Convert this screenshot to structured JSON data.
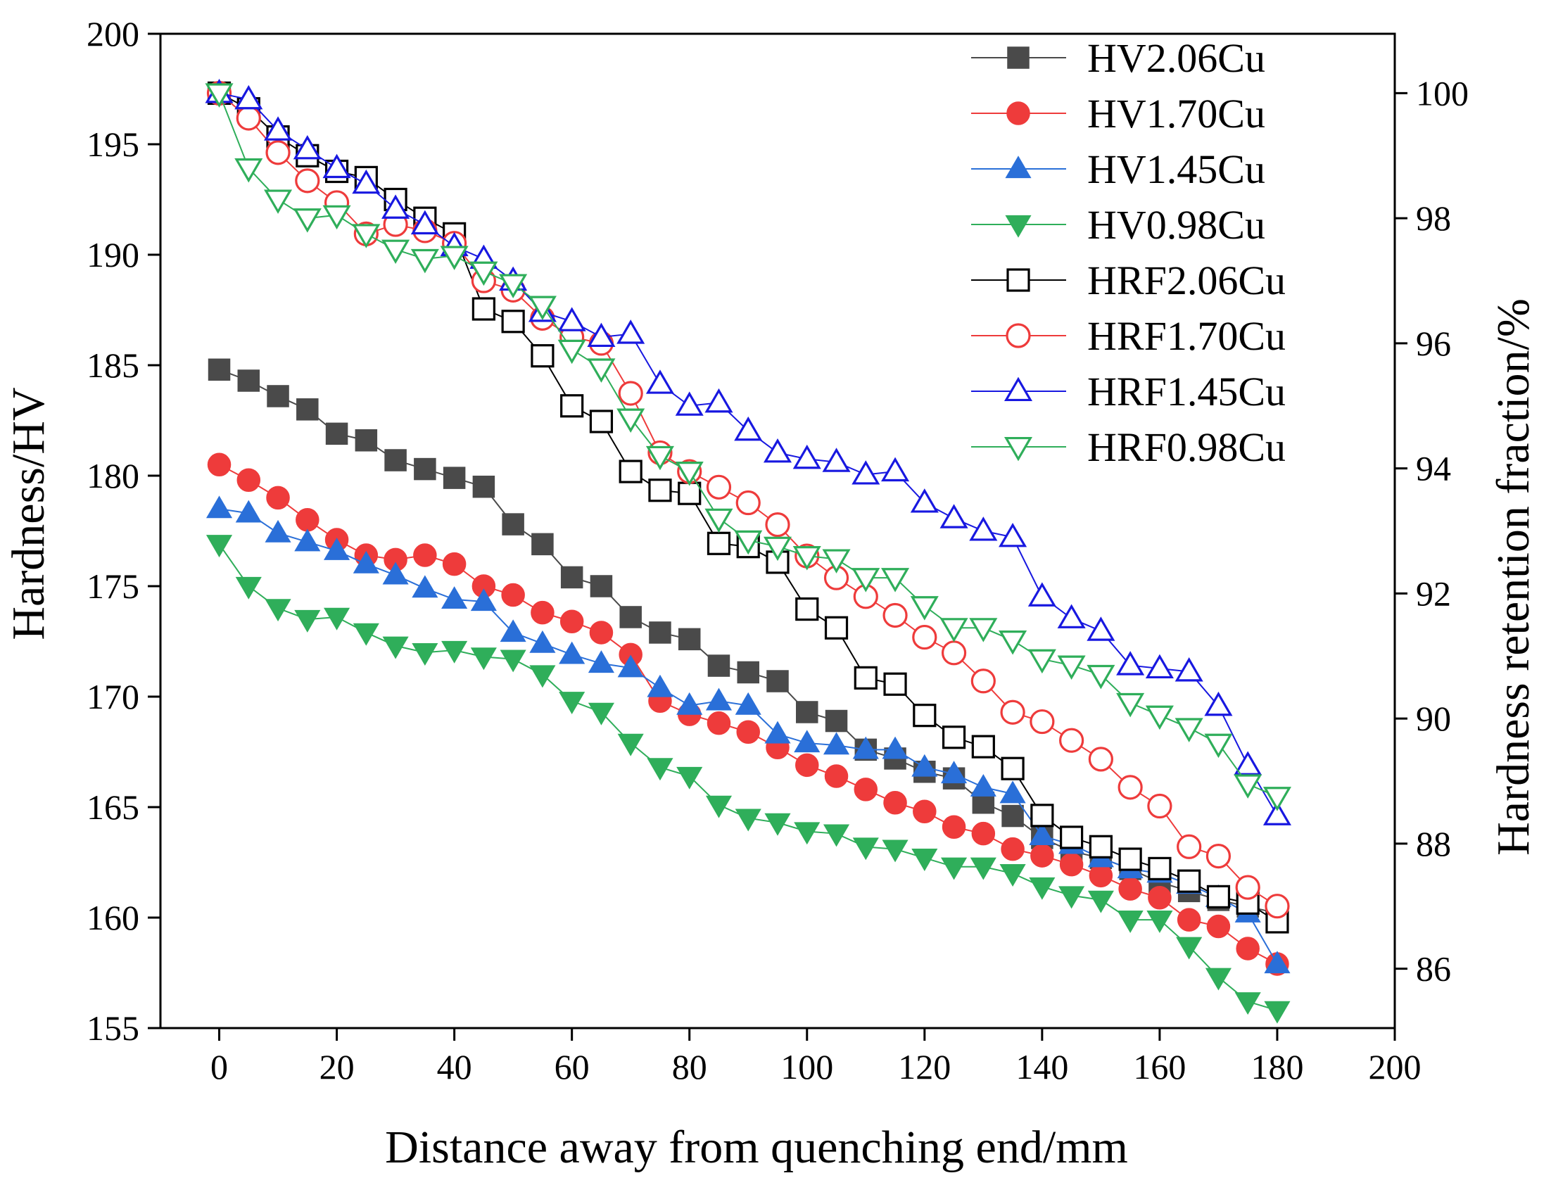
{
  "chart_data": {
    "type": "line",
    "xlabel": "Distance away from quenching end/mm",
    "ylabel": "Hardness/HV",
    "y2label": "Hardness retention fraction/%",
    "xlim": [
      -10,
      200
    ],
    "ylim": [
      155,
      200
    ],
    "y2lim": [
      85.05,
      100.95
    ],
    "x_ticks": [
      0,
      20,
      40,
      60,
      80,
      100,
      120,
      140,
      160,
      180,
      200
    ],
    "y_ticks": [
      155,
      160,
      165,
      170,
      175,
      180,
      185,
      190,
      195,
      200
    ],
    "y2_ticks": [
      86,
      88,
      90,
      92,
      94,
      96,
      98,
      100
    ],
    "legend_position": "top-right",
    "x": [
      0,
      5,
      10,
      15,
      20,
      25,
      30,
      35,
      40,
      45,
      50,
      55,
      60,
      65,
      70,
      75,
      80,
      85,
      90,
      95,
      100,
      105,
      110,
      115,
      120,
      125,
      130,
      135,
      140,
      145,
      150,
      155,
      160,
      165,
      170,
      175,
      180
    ],
    "series": [
      {
        "name": "HV2.06Cu",
        "axis": "left",
        "marker": "square",
        "filled": true,
        "color": "#4a4a4a",
        "values": [
          184.8,
          184.3,
          183.6,
          183.0,
          181.9,
          181.6,
          180.7,
          180.3,
          179.9,
          179.5,
          177.8,
          176.9,
          175.4,
          175.0,
          173.6,
          172.9,
          172.6,
          171.4,
          171.1,
          170.7,
          169.3,
          168.9,
          167.6,
          167.2,
          166.6,
          166.3,
          165.2,
          164.6,
          163.6,
          163.0,
          162.7,
          162.2,
          161.6,
          161.2,
          160.8,
          160.5,
          160.2
        ]
      },
      {
        "name": "HV1.70Cu",
        "axis": "left",
        "marker": "circle",
        "filled": true,
        "color": "#ee3b3b",
        "values": [
          180.5,
          179.8,
          179.0,
          178.0,
          177.1,
          176.4,
          176.2,
          176.4,
          176.0,
          175.0,
          174.6,
          173.8,
          173.4,
          172.9,
          171.9,
          169.8,
          169.2,
          168.8,
          168.4,
          167.7,
          166.9,
          166.4,
          165.8,
          165.2,
          164.8,
          164.1,
          163.8,
          163.1,
          162.8,
          162.4,
          161.9,
          161.3,
          160.9,
          159.9,
          159.6,
          158.6,
          157.9
        ]
      },
      {
        "name": "HV1.45Cu",
        "axis": "left",
        "marker": "triangle-up",
        "filled": true,
        "color": "#2a6fd8",
        "values": [
          178.5,
          178.3,
          177.4,
          177.0,
          176.6,
          176.0,
          175.5,
          174.9,
          174.4,
          174.3,
          172.9,
          172.4,
          171.9,
          171.5,
          171.3,
          170.4,
          169.6,
          169.8,
          169.6,
          168.3,
          167.9,
          167.8,
          167.6,
          167.6,
          166.8,
          166.5,
          165.9,
          165.6,
          163.7,
          163.3,
          162.7,
          162.2,
          162.0,
          161.5,
          160.9,
          160.2,
          157.9
        ]
      },
      {
        "name": "HV0.98Cu",
        "axis": "left",
        "marker": "triangle-down",
        "filled": true,
        "color": "#2fae5a",
        "values": [
          176.9,
          175.0,
          174.0,
          173.5,
          173.6,
          172.9,
          172.3,
          172.0,
          172.1,
          171.8,
          171.7,
          171.0,
          169.8,
          169.3,
          167.9,
          166.8,
          166.4,
          165.1,
          164.5,
          164.3,
          163.9,
          163.8,
          163.2,
          163.1,
          162.7,
          162.3,
          162.3,
          162.0,
          161.4,
          161.0,
          160.8,
          159.9,
          159.9,
          158.7,
          157.3,
          156.2,
          155.8
        ]
      },
      {
        "name": "HRF2.06Cu",
        "axis": "right",
        "marker": "square",
        "filled": false,
        "color": "#000000",
        "values": [
          100.0,
          99.75,
          99.3,
          99.0,
          98.75,
          98.65,
          98.3,
          98.0,
          97.75,
          96.55,
          96.35,
          95.8,
          95.0,
          94.75,
          93.95,
          93.65,
          93.6,
          92.8,
          92.75,
          92.5,
          91.75,
          91.45,
          90.65,
          90.55,
          90.05,
          89.7,
          89.55,
          89.2,
          88.45,
          88.1,
          87.95,
          87.75,
          87.6,
          87.4,
          87.15,
          87.05,
          86.75
        ]
      },
      {
        "name": "HRF1.70Cu",
        "axis": "right",
        "marker": "circle",
        "filled": false,
        "color": "#ee3b3b",
        "values": [
          100.0,
          99.6,
          99.05,
          98.6,
          98.25,
          97.75,
          97.9,
          97.8,
          97.6,
          97.0,
          96.85,
          96.4,
          96.1,
          96.0,
          95.2,
          94.25,
          93.95,
          93.7,
          93.45,
          93.1,
          92.6,
          92.25,
          91.95,
          91.65,
          91.3,
          91.05,
          90.6,
          90.1,
          89.95,
          89.65,
          89.35,
          88.9,
          88.6,
          87.95,
          87.8,
          87.3,
          87.0
        ]
      },
      {
        "name": "HRF1.45Cu",
        "axis": "right",
        "marker": "triangle-up",
        "filled": false,
        "color": "#1818e0",
        "values": [
          100.0,
          99.9,
          99.4,
          99.1,
          98.8,
          98.55,
          98.15,
          97.9,
          97.55,
          97.35,
          97.0,
          96.5,
          96.35,
          96.1,
          96.15,
          95.35,
          95.0,
          95.05,
          94.6,
          94.25,
          94.15,
          94.1,
          93.9,
          93.95,
          93.45,
          93.2,
          93.0,
          92.9,
          91.95,
          91.6,
          91.4,
          90.85,
          90.8,
          90.75,
          90.2,
          89.25,
          88.45
        ]
      },
      {
        "name": "HRF0.98Cu",
        "axis": "right",
        "marker": "triangle-down",
        "filled": false,
        "color": "#2fae5a",
        "values": [
          100.0,
          98.8,
          98.3,
          98.0,
          98.05,
          97.75,
          97.5,
          97.35,
          97.4,
          97.15,
          96.95,
          96.6,
          95.9,
          95.6,
          94.8,
          94.2,
          93.95,
          93.2,
          92.85,
          92.75,
          92.6,
          92.55,
          92.25,
          92.25,
          91.8,
          91.45,
          91.45,
          91.25,
          90.95,
          90.85,
          90.7,
          90.25,
          90.05,
          89.85,
          89.6,
          88.95,
          88.75
        ]
      }
    ]
  }
}
